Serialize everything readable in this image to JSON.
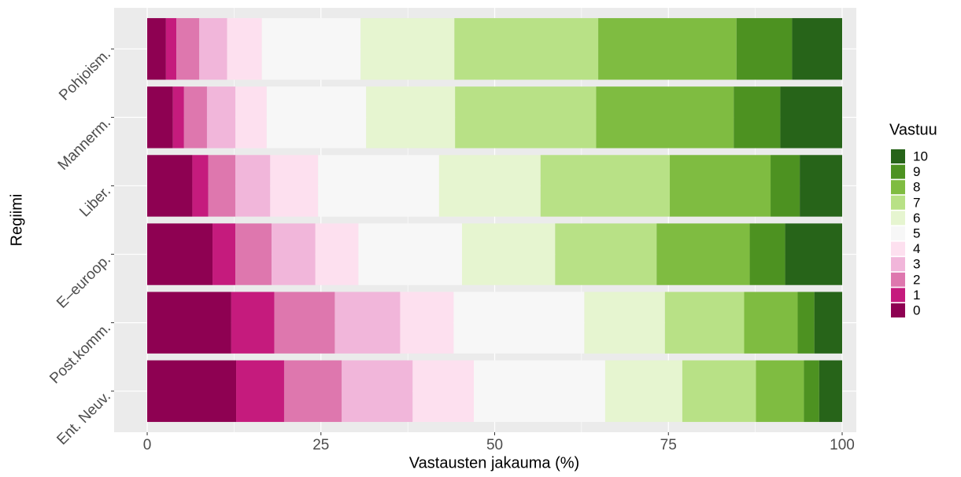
{
  "chart_data": {
    "type": "stacked_barh",
    "categories": [
      "Pohjoism.",
      "Mannerm.",
      "Liber.",
      "E–euroop.",
      "Post.komm.",
      "Ent. Neuv."
    ],
    "xlabel": "Vastausten jakauma (%)",
    "ylabel": "Regiimi",
    "legend_title": "Vastuu",
    "xlim": [
      -4.76,
      102.04
    ],
    "xticks": [
      0,
      25,
      50,
      75,
      100
    ],
    "grid": true,
    "legend": "right",
    "series": [
      {
        "name": "0",
        "color": "#8E0152",
        "values": [
          2.7,
          3.7,
          6.5,
          9.4,
          12.1,
          12.8
        ]
      },
      {
        "name": "1",
        "color": "#C51B7D",
        "values": [
          1.5,
          1.6,
          2.3,
          3.3,
          6.2,
          6.9
        ]
      },
      {
        "name": "2",
        "color": "#DE77AE",
        "values": [
          3.3,
          3.3,
          3.9,
          5.2,
          8.7,
          8.3
        ]
      },
      {
        "name": "3",
        "color": "#F1B6DA",
        "values": [
          4.0,
          4.1,
          5.0,
          6.3,
          9.4,
          10.2
        ]
      },
      {
        "name": "4",
        "color": "#FDE0EF",
        "values": [
          5.0,
          4.5,
          6.9,
          6.2,
          7.7,
          8.8
        ]
      },
      {
        "name": "5",
        "color": "#F7F7F7",
        "values": [
          14.2,
          14.3,
          17.4,
          14.9,
          18.8,
          18.9
        ]
      },
      {
        "name": "6",
        "color": "#E6F5D0",
        "values": [
          13.5,
          12.8,
          14.6,
          13.4,
          11.6,
          11.1
        ]
      },
      {
        "name": "7",
        "color": "#B8E186",
        "values": [
          20.7,
          20.3,
          18.6,
          14.6,
          11.4,
          10.6
        ]
      },
      {
        "name": "8",
        "color": "#7FBC41",
        "values": [
          19.9,
          19.8,
          14.5,
          13.4,
          7.7,
          6.9
        ]
      },
      {
        "name": "9",
        "color": "#4D9221",
        "values": [
          8.0,
          6.7,
          4.2,
          5.1,
          2.4,
          2.2
        ]
      },
      {
        "name": "10",
        "color": "#276419",
        "values": [
          7.2,
          8.9,
          6.1,
          8.2,
          4.0,
          3.3
        ]
      }
    ]
  }
}
